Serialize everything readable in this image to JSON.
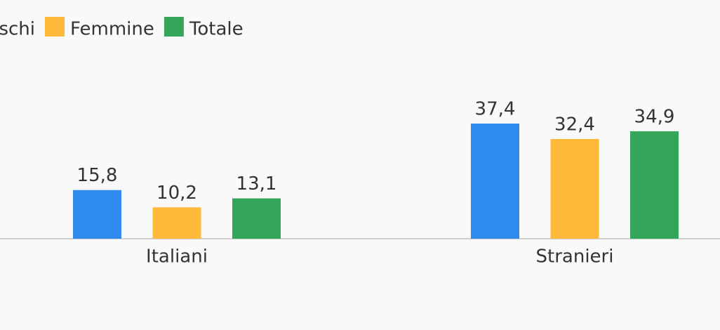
{
  "chart_data": {
    "type": "bar",
    "categories": [
      "Italiani",
      "Stranieri"
    ],
    "series": [
      {
        "name": "Maschi",
        "color": "#2f8aee",
        "values": [
          15.8,
          37.4
        ],
        "value_labels": [
          "15,8",
          "37,4"
        ]
      },
      {
        "name": "Femmine",
        "color": "#ffb93a",
        "values": [
          10.2,
          32.4
        ],
        "value_labels": [
          "10,2",
          "32,4"
        ]
      },
      {
        "name": "Totale",
        "color": "#33a65a",
        "values": [
          13.1,
          34.9
        ],
        "value_labels": [
          "13,1",
          "34,9"
        ]
      }
    ],
    "legend": "top-left"
  }
}
